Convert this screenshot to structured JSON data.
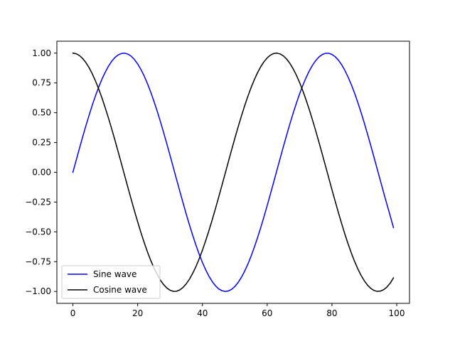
{
  "chart_data": {
    "type": "line",
    "title": "",
    "xlabel": "",
    "ylabel": "",
    "xlim": [
      -4.95,
      103.95
    ],
    "ylim": [
      -1.1,
      1.1
    ],
    "xticks": [
      0,
      20,
      40,
      60,
      80,
      100
    ],
    "yticks": [
      -1.0,
      -0.75,
      -0.5,
      -0.25,
      0.0,
      0.25,
      0.5,
      0.75,
      1.0
    ],
    "xtick_labels": [
      "0",
      "20",
      "40",
      "60",
      "80",
      "100"
    ],
    "ytick_labels": [
      "−1.00",
      "−0.75",
      "−0.50",
      "−0.25",
      "0.00",
      "0.25",
      "0.50",
      "0.75",
      "1.00"
    ],
    "grid": false,
    "legend_position": "lower-left",
    "series": [
      {
        "name": "Sine wave",
        "color": "#0000ff",
        "x": [
          0,
          5,
          10,
          15,
          20,
          25,
          30,
          35,
          40,
          45,
          50,
          55,
          60,
          65,
          70,
          75,
          80,
          85,
          90,
          95,
          99
        ],
        "y": [
          0.0,
          0.479,
          0.841,
          0.997,
          0.909,
          0.598,
          0.141,
          -0.351,
          -0.757,
          -0.978,
          -0.959,
          -0.706,
          -0.279,
          0.215,
          0.657,
          0.938,
          0.989,
          0.798,
          0.412,
          -0.075,
          -0.465
        ]
      },
      {
        "name": "Cosine wave",
        "color": "#000000",
        "x": [
          0,
          5,
          10,
          15,
          20,
          25,
          30,
          35,
          40,
          45,
          50,
          55,
          60,
          65,
          70,
          75,
          80,
          85,
          90,
          95,
          99
        ],
        "y": [
          1.0,
          0.878,
          0.54,
          0.071,
          -0.416,
          -0.801,
          -0.99,
          -0.936,
          -0.654,
          -0.211,
          0.284,
          0.709,
          0.96,
          0.977,
          0.754,
          0.347,
          -0.146,
          -0.602,
          -0.911,
          -0.997,
          -0.886
        ]
      }
    ]
  }
}
